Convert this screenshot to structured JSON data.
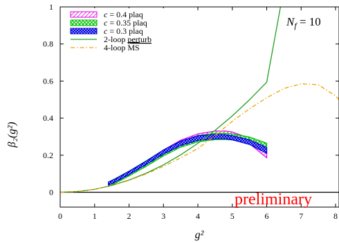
{
  "chart_data": {
    "type": "line",
    "title": "",
    "xlabel": "g²",
    "ylabel": "β₂(g²)",
    "xlim": [
      0,
      8.1
    ],
    "ylim": [
      -0.08,
      1.0
    ],
    "x_ticks": [
      "0",
      "1",
      "2",
      "3",
      "4",
      "5",
      "6",
      "7",
      "8"
    ],
    "y_ticks": [
      "0",
      "0.2",
      "0.4",
      "0.6",
      "0.8",
      "1"
    ],
    "x_tick_values": [
      0,
      1,
      2,
      3,
      4,
      5,
      6,
      7,
      8
    ],
    "y_tick_values": [
      0,
      0.2,
      0.4,
      0.6,
      0.8,
      1
    ],
    "annotation": "N_f = 10",
    "annotation_main": "N",
    "annotation_sub": "f",
    "annotation_rest": " = 10",
    "watermark": "preliminary",
    "legend_position": "top-left",
    "bands": [
      {
        "name": "c = 0.4 plaq",
        "legend_c": "c",
        "legend_rest": " = 0.4 plaq",
        "color": "#e000e0",
        "hatch": "diag",
        "x": [
          1.4,
          1.6,
          2.0,
          2.5,
          3.0,
          3.5,
          4.0,
          4.5,
          4.8,
          5.0,
          5.5,
          6.0
        ],
        "upper": [
          0.055,
          0.072,
          0.112,
          0.168,
          0.228,
          0.281,
          0.315,
          0.33,
          0.33,
          0.325,
          0.292,
          0.225
        ],
        "lower": [
          0.043,
          0.06,
          0.1,
          0.156,
          0.214,
          0.265,
          0.296,
          0.31,
          0.31,
          0.304,
          0.262,
          0.186
        ]
      },
      {
        "name": "c = 0.35 plaq",
        "legend_c": "c",
        "legend_rest": " = 0.35 plaq",
        "color": "#00c000",
        "hatch": "cross",
        "x": [
          1.4,
          1.6,
          2.0,
          2.5,
          3.0,
          3.5,
          4.0,
          4.5,
          4.8,
          5.0,
          5.5,
          6.0
        ],
        "upper": [
          0.055,
          0.074,
          0.114,
          0.17,
          0.228,
          0.276,
          0.306,
          0.318,
          0.318,
          0.315,
          0.298,
          0.265
        ],
        "lower": [
          0.03,
          0.048,
          0.088,
          0.14,
          0.196,
          0.243,
          0.272,
          0.284,
          0.285,
          0.282,
          0.262,
          0.228
        ]
      },
      {
        "name": "c = 0.3 plaq",
        "legend_c": "c",
        "legend_rest": " = 0.3 plaq",
        "color": "#0000e0",
        "hatch": "dense",
        "x": [
          1.4,
          1.6,
          2.0,
          2.5,
          3.0,
          3.5,
          4.0,
          4.5,
          4.8,
          5.0,
          5.5,
          6.0
        ],
        "upper": [
          0.055,
          0.072,
          0.113,
          0.168,
          0.228,
          0.276,
          0.305,
          0.312,
          0.31,
          0.305,
          0.283,
          0.242
        ],
        "lower": [
          0.038,
          0.055,
          0.095,
          0.15,
          0.206,
          0.252,
          0.28,
          0.288,
          0.288,
          0.283,
          0.258,
          0.21
        ]
      }
    ],
    "lines": [
      {
        "name": "2-loop perturb",
        "legend_main": "2-loop ",
        "legend_ul": "perturb",
        "color": "#20a020",
        "style": "solid",
        "x": [
          0,
          0.5,
          1,
          1.5,
          2,
          2.5,
          3,
          3.5,
          4,
          4.5,
          5,
          5.5,
          6,
          6.4
        ],
        "y": [
          0,
          0.004,
          0.016,
          0.037,
          0.066,
          0.103,
          0.148,
          0.202,
          0.264,
          0.334,
          0.412,
          0.499,
          0.594,
          1.0
        ]
      },
      {
        "name": "4-loop MS",
        "legend_main": "4-loop ",
        "legend_ol": "MS",
        "color": "#f0a000",
        "style": "dashdot",
        "x": [
          0,
          0.5,
          1,
          1.5,
          2,
          2.5,
          3,
          3.5,
          4,
          4.5,
          5,
          5.5,
          6,
          6.5,
          7,
          7.5,
          8,
          8.1
        ],
        "y": [
          0,
          0.004,
          0.016,
          0.036,
          0.064,
          0.099,
          0.14,
          0.186,
          0.236,
          0.306,
          0.383,
          0.45,
          0.51,
          0.56,
          0.585,
          0.58,
          0.52,
          0.5
        ]
      }
    ]
  }
}
